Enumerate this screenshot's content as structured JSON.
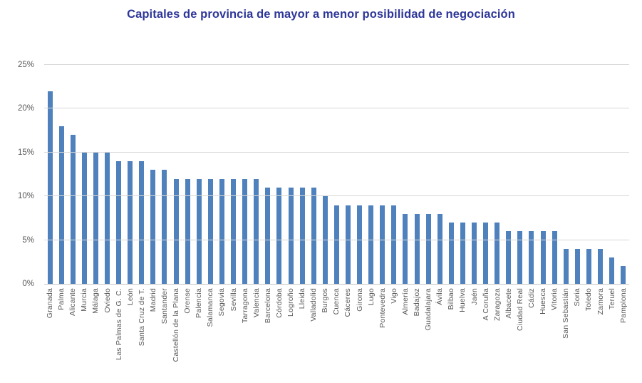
{
  "chart_data": {
    "type": "bar",
    "title": "Capitales de provincia de mayor a menor posibilidad de negociación",
    "xlabel": "",
    "ylabel": "",
    "ylim": [
      0,
      25
    ],
    "ytick_step": 5,
    "ytick_labels": [
      "0%",
      "5%",
      "10%",
      "15%",
      "20%",
      "25%"
    ],
    "grid": true,
    "legend": "none",
    "categories": [
      "Granada",
      "Palma",
      "Alicante",
      "Murcia",
      "Málaga",
      "Oviedo",
      "Las Palmas de G. C.",
      "León",
      "Santa Cruz de T.",
      "Madrid",
      "Santander",
      "Castellón de la Plana",
      "Orense",
      "Palencia",
      "Salamanca",
      "Segovia",
      "Sevilla",
      "Tarragona",
      "Valencia",
      "Barcelona",
      "Córdoba",
      "Logroño",
      "Lleida",
      "Valladolid",
      "Burgos",
      "Cuenca",
      "Cáceres",
      "Girona",
      "Lugo",
      "Pontevedra",
      "Vigo",
      "Almería",
      "Badajoz",
      "Guadalajara",
      "Ávila",
      "Bilbao",
      "Huelva",
      "Jaén",
      "A Coruña",
      "Zaragoza",
      "Albacete",
      "Ciudad Real",
      "Cádiz",
      "Huesca",
      "Vitoria",
      "San Sebastián",
      "Soria",
      "Toledo",
      "Zamora",
      "Teruel",
      "Pamplona"
    ],
    "values": [
      22,
      18,
      17,
      15,
      15,
      15,
      14,
      14,
      14,
      13,
      13,
      12,
      12,
      12,
      12,
      12,
      12,
      12,
      12,
      11,
      11,
      11,
      11,
      11,
      10,
      9,
      9,
      9,
      9,
      9,
      9,
      8,
      8,
      8,
      8,
      7,
      7,
      7,
      7,
      7,
      6,
      6,
      6,
      6,
      6,
      4,
      4,
      4,
      4,
      3,
      2
    ],
    "value_unit": "%"
  },
  "colors": {
    "title": "#2e3799",
    "bar": "#4f81bd",
    "gridline": "#d8d8d8",
    "axis_line": "#c9c9c9",
    "axis_text": "#595959",
    "background": "#ffffff"
  }
}
